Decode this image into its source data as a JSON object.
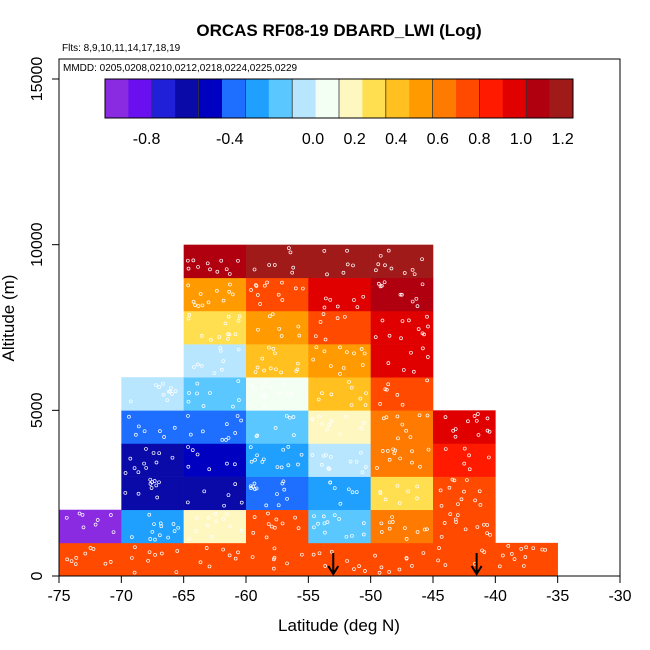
{
  "chart_data": {
    "type": "heatmap",
    "title": "ORCAS RF08-19 DBARD_LWI (Log)",
    "flights_text": "Flts: 8,9,10,11,14,17,18,19",
    "dates_text": "MMDD: 0205,0208,0210,0212,0218,0224,0225,0229",
    "xlabel": "Latitude (deg N)",
    "ylabel": "Altitude (m)",
    "xlim": [
      -75,
      -30
    ],
    "ylim": [
      0,
      15000
    ],
    "x_ticks": [
      -75,
      -70,
      -65,
      -60,
      -55,
      -50,
      -45,
      -40,
      -35,
      -30
    ],
    "x_tick_labels": [
      "-75",
      "-70",
      "-65",
      "-60",
      "-55",
      "-50",
      "-45",
      "-40",
      "-35",
      "-30"
    ],
    "y_ticks": [
      0,
      5000,
      10000,
      15000
    ],
    "y_tick_labels": [
      "0",
      "5000",
      "10000",
      "15000"
    ],
    "colorbar": {
      "range": [
        -1.0,
        1.25
      ],
      "tick_values": [
        -0.8,
        -0.4,
        0.0,
        0.2,
        0.4,
        0.6,
        0.8,
        1.0,
        1.2
      ],
      "tick_labels": [
        "-0.8",
        "-0.4",
        "0.0",
        "0.2",
        "0.4",
        "0.6",
        "0.8",
        "1.0",
        "1.2"
      ],
      "colors": [
        "#8a2be2",
        "#6a10f0",
        "#2020d8",
        "#0a0aa8",
        "#0000c0",
        "#1e6fff",
        "#1fa0ff",
        "#5ac8ff",
        "#b8e6ff",
        "#f4fff4",
        "#fff7c0",
        "#ffdf50",
        "#ffc020",
        "#ff9a00",
        "#ff7a00",
        "#ff4a00",
        "#ff1a00",
        "#e00000",
        "#b00010",
        "#a01a1a"
      ]
    },
    "cells": [
      {
        "lat": -75,
        "alt": 0,
        "value": 0.72
      },
      {
        "lat": -70,
        "alt": 0,
        "value": 0.72
      },
      {
        "lat": -65,
        "alt": 0,
        "value": 0.72
      },
      {
        "lat": -60,
        "alt": 0,
        "value": 0.72
      },
      {
        "lat": -55,
        "alt": 0,
        "value": 0.76
      },
      {
        "lat": -50,
        "alt": 0,
        "value": 0.72
      },
      {
        "lat": -45,
        "alt": 0,
        "value": 0.72
      },
      {
        "lat": -40,
        "alt": 0,
        "value": 0.72
      },
      {
        "lat": -75,
        "alt": 1000,
        "value": -0.95
      },
      {
        "lat": -70,
        "alt": 1000,
        "value": -0.25
      },
      {
        "lat": -65,
        "alt": 1000,
        "value": 0.15
      },
      {
        "lat": -60,
        "alt": 1000,
        "value": 0.7
      },
      {
        "lat": -55,
        "alt": 1000,
        "value": -0.15
      },
      {
        "lat": -50,
        "alt": 1000,
        "value": 0.62
      },
      {
        "lat": -45,
        "alt": 1000,
        "value": 0.7
      },
      {
        "lat": -70,
        "alt": 2000,
        "value": -0.65
      },
      {
        "lat": -65,
        "alt": 2000,
        "value": -0.6
      },
      {
        "lat": -60,
        "alt": 2000,
        "value": -0.38
      },
      {
        "lat": -55,
        "alt": 2000,
        "value": -0.25
      },
      {
        "lat": -50,
        "alt": 2000,
        "value": 0.3
      },
      {
        "lat": -45,
        "alt": 2000,
        "value": 0.7
      },
      {
        "lat": -70,
        "alt": 3000,
        "value": -0.55
      },
      {
        "lat": -65,
        "alt": 3000,
        "value": -0.5
      },
      {
        "lat": -60,
        "alt": 3000,
        "value": -0.3
      },
      {
        "lat": -55,
        "alt": 3000,
        "value": -0.05
      },
      {
        "lat": -50,
        "alt": 3000,
        "value": 0.6
      },
      {
        "lat": -45,
        "alt": 3000,
        "value": 0.9
      },
      {
        "lat": -70,
        "alt": 4000,
        "value": -0.4
      },
      {
        "lat": -65,
        "alt": 4000,
        "value": -0.35
      },
      {
        "lat": -60,
        "alt": 4000,
        "value": -0.15
      },
      {
        "lat": -55,
        "alt": 4000,
        "value": 0.15
      },
      {
        "lat": -50,
        "alt": 4000,
        "value": 0.62
      },
      {
        "lat": -45,
        "alt": 4000,
        "value": 0.98
      },
      {
        "lat": -70,
        "alt": 5000,
        "value": -0.1
      },
      {
        "lat": -65,
        "alt": 5000,
        "value": -0.2
      },
      {
        "lat": -60,
        "alt": 5000,
        "value": 0.1
      },
      {
        "lat": -55,
        "alt": 5000,
        "value": 0.42
      },
      {
        "lat": -50,
        "alt": 5000,
        "value": 0.72
      },
      {
        "lat": -65,
        "alt": 6000,
        "value": -0.05
      },
      {
        "lat": -60,
        "alt": 6000,
        "value": 0.35
      },
      {
        "lat": -55,
        "alt": 6000,
        "value": 0.55
      },
      {
        "lat": -50,
        "alt": 6000,
        "value": 0.95
      },
      {
        "lat": -65,
        "alt": 7000,
        "value": 0.25
      },
      {
        "lat": -60,
        "alt": 7000,
        "value": 0.48
      },
      {
        "lat": -55,
        "alt": 7000,
        "value": 0.75
      },
      {
        "lat": -50,
        "alt": 7000,
        "value": 1.0
      },
      {
        "lat": -65,
        "alt": 8000,
        "value": 0.48
      },
      {
        "lat": -60,
        "alt": 8000,
        "value": 0.72
      },
      {
        "lat": -55,
        "alt": 8000,
        "value": 0.98
      },
      {
        "lat": -50,
        "alt": 8000,
        "value": 1.12
      },
      {
        "lat": -65,
        "alt": 9000,
        "value": 1.05
      },
      {
        "lat": -60,
        "alt": 9000,
        "value": 1.15
      },
      {
        "lat": -55,
        "alt": 9000,
        "value": 1.18
      },
      {
        "lat": -50,
        "alt": 9000,
        "value": 1.22
      }
    ],
    "markers": [
      {
        "type": "arrow",
        "lat": -53,
        "alt": 0
      },
      {
        "type": "arrow",
        "lat": -41.5,
        "alt": 0
      }
    ]
  }
}
